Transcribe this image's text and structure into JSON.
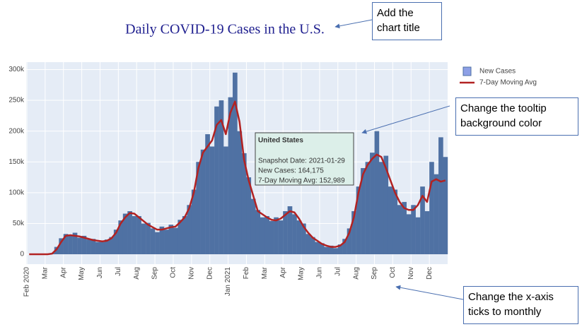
{
  "chart_data": {
    "type": "bar",
    "title": "Daily COVID-19 Cases in the U.S.",
    "categories": [
      "Feb 2020",
      null,
      null,
      null,
      "Mar",
      null,
      null,
      null,
      "Apr",
      null,
      null,
      null,
      "May",
      null,
      null,
      null,
      "Jun",
      null,
      null,
      null,
      "Jul",
      null,
      null,
      null,
      "Aug",
      null,
      null,
      null,
      "Sep",
      null,
      null,
      null,
      "Oct",
      null,
      null,
      null,
      "Nov",
      null,
      null,
      null,
      "Dec",
      null,
      null,
      null,
      "Jan 2021",
      null,
      null,
      null,
      "Feb",
      null,
      null,
      null,
      "Mar",
      null,
      null,
      null,
      "Apr",
      null,
      null,
      null,
      "May",
      null,
      null,
      null,
      "Jun",
      null,
      null,
      null,
      "Jul",
      null,
      null,
      null,
      "Aug",
      null,
      null,
      null,
      "Sep",
      null,
      null,
      null,
      "Oct",
      null,
      null,
      null,
      "Nov",
      null,
      null,
      null,
      "Dec",
      null,
      null,
      null
    ],
    "series": [
      {
        "name": "New Cases",
        "type": "bar",
        "color": "#4f71a3",
        "legend_color": "#8da0e6",
        "values": [
          0,
          0,
          0,
          0,
          0,
          2000,
          12000,
          26000,
          33000,
          30000,
          35000,
          27000,
          30000,
          24000,
          25000,
          20000,
          20000,
          24000,
          28000,
          40000,
          55000,
          66000,
          70000,
          62000,
          62000,
          50000,
          51000,
          42000,
          36000,
          45000,
          40000,
          48000,
          43000,
          56000,
          62000,
          80000,
          105000,
          150000,
          170000,
          195000,
          175000,
          240000,
          250000,
          175000,
          255000,
          295000,
          200000,
          164175,
          125000,
          90000,
          72000,
          60000,
          62000,
          54000,
          60000,
          55000,
          70000,
          78000,
          65000,
          55000,
          50000,
          33000,
          28000,
          20000,
          18000,
          12000,
          14000,
          10000,
          16000,
          25000,
          42000,
          70000,
          110000,
          140000,
          150000,
          165000,
          200000,
          150000,
          160000,
          110000,
          105000,
          80000,
          85000,
          65000,
          80000,
          60000,
          110000,
          70000,
          150000,
          130000,
          190000,
          158000
        ]
      },
      {
        "name": "7-Day Moving Avg",
        "type": "line",
        "color": "#b22222",
        "values": [
          0,
          0,
          0,
          0,
          0,
          1000,
          8000,
          20000,
          30000,
          31000,
          30000,
          29000,
          27000,
          25000,
          23000,
          22000,
          21000,
          22000,
          26000,
          35000,
          50000,
          60000,
          67000,
          66000,
          60000,
          54000,
          48000,
          44000,
          40000,
          40000,
          42000,
          44000,
          45000,
          52000,
          60000,
          75000,
          100000,
          140000,
          165000,
          175000,
          185000,
          210000,
          218000,
          195000,
          230000,
          248000,
          215000,
          152989,
          120000,
          95000,
          70000,
          65000,
          60000,
          56000,
          55000,
          58000,
          64000,
          70000,
          68000,
          58000,
          45000,
          35000,
          27000,
          22000,
          17000,
          14000,
          12000,
          12000,
          14000,
          20000,
          35000,
          60000,
          100000,
          130000,
          145000,
          155000,
          162000,
          158000,
          140000,
          120000,
          100000,
          85000,
          75000,
          72000,
          72000,
          80000,
          95000,
          85000,
          118000,
          122000,
          118000,
          120000
        ]
      }
    ],
    "ylim": [
      -16000,
      312000
    ],
    "yticks": [
      0,
      {
        "value": 50000,
        "label": "50k"
      },
      {
        "value": 100000,
        "label": "100k"
      },
      {
        "value": 150000,
        "label": "150k"
      },
      {
        "value": 200000,
        "label": "200k"
      },
      {
        "value": 250000,
        "label": "250k"
      },
      {
        "value": 300000,
        "label": "300k"
      }
    ],
    "grid": true,
    "legend": "top-right",
    "tooltip": {
      "title": "United States",
      "lines": [
        "Snapshot Date: 2021-01-29",
        "New Cases: 164,175",
        "7-Day Moving Avg: 152,989"
      ],
      "background": "#dcefe9"
    }
  },
  "callouts": [
    "Add the chart title",
    "Change the tooltip background color",
    "Change the x-axis ticks to monthly"
  ]
}
